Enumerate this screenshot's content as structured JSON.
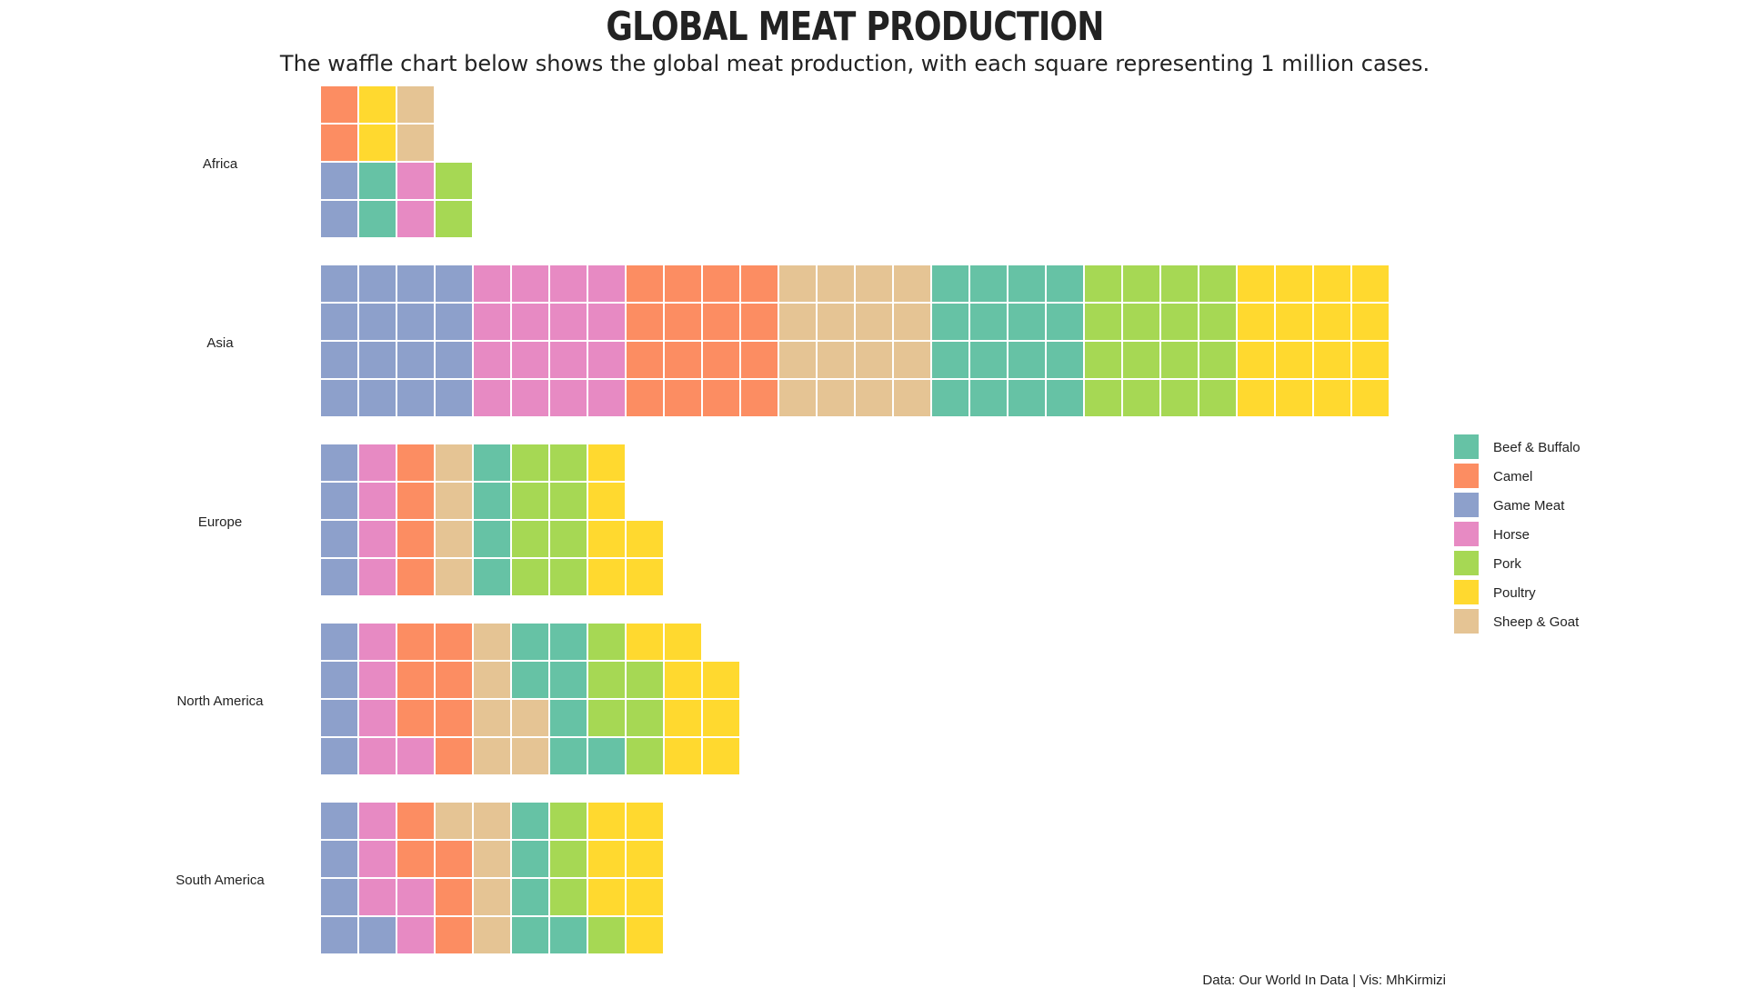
{
  "chart_data": {
    "type": "waffle",
    "title": "GLOBAL MEAT PRODUCTION",
    "subtitle": "The waffle chart below shows the global meat production, with each square representing 1 million cases.",
    "caption": "Data: Our World In Data | Vis: MhKirmizi",
    "legend_position": "right",
    "series": [
      {
        "name": "Beef & Buffalo",
        "color": "#66c2a5"
      },
      {
        "name": "Camel",
        "color": "#fc8d62"
      },
      {
        "name": "Game Meat",
        "color": "#8da0cb"
      },
      {
        "name": "Horse",
        "color": "#e78ac3"
      },
      {
        "name": "Pork",
        "color": "#a6d854"
      },
      {
        "name": "Poultry",
        "color": "#ffd92f"
      },
      {
        "name": "Sheep & Goat",
        "color": "#e5c494"
      }
    ],
    "regions": [
      {
        "name": "Africa",
        "cells": [
          [
            "Game Meat",
            "Game Meat",
            "Camel",
            "Camel",
            "Beef & Buffalo",
            "Beef & Buffalo",
            "Poultry",
            "Poultry"
          ],
          [
            "Horse",
            "Horse",
            "Sheep & Goat",
            "Sheep & Goat",
            "Pork",
            "Pork"
          ]
        ]
      },
      {
        "name": "Asia",
        "cells": [
          [
            "Game Meat",
            "Game Meat",
            "Game Meat",
            "Game Meat",
            "Game Meat",
            "Game Meat",
            "Game Meat",
            "Game Meat",
            "Game Meat",
            "Game Meat",
            "Game Meat",
            "Game Meat",
            "Game Meat",
            "Game Meat",
            "Game Meat",
            "Game Meat"
          ],
          [
            "Horse",
            "Horse",
            "Horse",
            "Horse",
            "Horse",
            "Horse",
            "Horse",
            "Horse",
            "Horse",
            "Horse",
            "Horse",
            "Horse",
            "Horse",
            "Horse",
            "Horse",
            "Horse"
          ],
          [
            "Camel",
            "Camel",
            "Camel",
            "Camel",
            "Camel",
            "Camel",
            "Camel",
            "Camel",
            "Camel",
            "Camel",
            "Camel",
            "Camel",
            "Camel",
            "Camel",
            "Camel",
            "Camel"
          ],
          [
            "Sheep & Goat",
            "Sheep & Goat",
            "Sheep & Goat",
            "Sheep & Goat",
            "Sheep & Goat",
            "Sheep & Goat",
            "Sheep & Goat",
            "Sheep & Goat",
            "Sheep & Goat",
            "Sheep & Goat",
            "Sheep & Goat",
            "Sheep & Goat",
            "Sheep & Goat",
            "Sheep & Goat",
            "Sheep & Goat",
            "Sheep & Goat"
          ],
          [
            "Beef & Buffalo",
            "Beef & Buffalo",
            "Beef & Buffalo",
            "Beef & Buffalo",
            "Beef & Buffalo",
            "Beef & Buffalo",
            "Beef & Buffalo",
            "Beef & Buffalo",
            "Beef & Buffalo",
            "Beef & Buffalo",
            "Beef & Buffalo",
            "Beef & Buffalo",
            "Beef & Buffalo",
            "Beef & Buffalo",
            "Beef & Buffalo",
            "Beef & Buffalo"
          ],
          [
            "Pork",
            "Pork",
            "Pork",
            "Pork",
            "Pork",
            "Pork",
            "Pork",
            "Pork",
            "Pork",
            "Pork",
            "Pork",
            "Pork",
            "Pork",
            "Pork",
            "Pork",
            "Pork"
          ],
          [
            "Poultry",
            "Poultry",
            "Poultry",
            "Poultry",
            "Poultry",
            "Poultry",
            "Poultry",
            "Poultry",
            "Poultry",
            "Poultry",
            "Poultry",
            "Poultry",
            "Poultry",
            "Poultry",
            "Poultry",
            "Poultry"
          ]
        ]
      },
      {
        "name": "Europe",
        "cells": [
          [
            "Game Meat",
            "Game Meat",
            "Game Meat",
            "Game Meat",
            "Horse",
            "Horse",
            "Horse",
            "Horse",
            "Camel",
            "Camel",
            "Camel",
            "Camel",
            "Sheep & Goat",
            "Sheep & Goat",
            "Sheep & Goat",
            "Sheep & Goat",
            "Beef & Buffalo",
            "Beef & Buffalo",
            "Beef & Buffalo",
            "Beef & Buffalo",
            "Pork",
            "Pork",
            "Pork",
            "Pork",
            "Pork",
            "Pork",
            "Pork",
            "Pork",
            "Poultry",
            "Poultry",
            "Poultry",
            "Poultry",
            "Poultry",
            "Poultry"
          ]
        ]
      },
      {
        "name": "North America",
        "cells": [
          [
            "Game Meat",
            "Game Meat",
            "Game Meat",
            "Game Meat",
            "Horse",
            "Horse",
            "Horse",
            "Horse",
            "Horse",
            "Camel",
            "Camel",
            "Camel",
            "Camel",
            "Camel",
            "Camel",
            "Camel",
            "Sheep & Goat",
            "Sheep & Goat",
            "Sheep & Goat",
            "Sheep & Goat",
            "Sheep & Goat",
            "Sheep & Goat",
            "Beef & Buffalo",
            "Beef & Buffalo",
            "Beef & Buffalo",
            "Beef & Buffalo",
            "Beef & Buffalo",
            "Beef & Buffalo",
            "Beef & Buffalo",
            "Pork",
            "Pork",
            "Pork",
            "Pork",
            "Pork",
            "Pork",
            "Poultry",
            "Poultry",
            "Poultry",
            "Poultry",
            "Poultry",
            "Poultry",
            "Poultry",
            "Poultry"
          ]
        ]
      },
      {
        "name": "South America",
        "cells": [
          [
            "Game Meat",
            "Game Meat",
            "Game Meat",
            "Game Meat",
            "Game Meat",
            "Horse",
            "Horse",
            "Horse",
            "Horse",
            "Horse",
            "Camel",
            "Camel",
            "Camel",
            "Camel",
            "Camel",
            "Sheep & Goat",
            "Sheep & Goat",
            "Sheep & Goat",
            "Sheep & Goat",
            "Sheep & Goat",
            "Beef & Buffalo",
            "Beef & Buffalo",
            "Beef & Buffalo",
            "Beef & Buffalo",
            "Beef & Buffalo",
            "Pork",
            "Pork",
            "Pork",
            "Pork",
            "Poultry",
            "Poultry",
            "Poultry",
            "Poultry",
            "Poultry",
            "Poultry",
            "Poultry"
          ]
        ]
      }
    ]
  }
}
